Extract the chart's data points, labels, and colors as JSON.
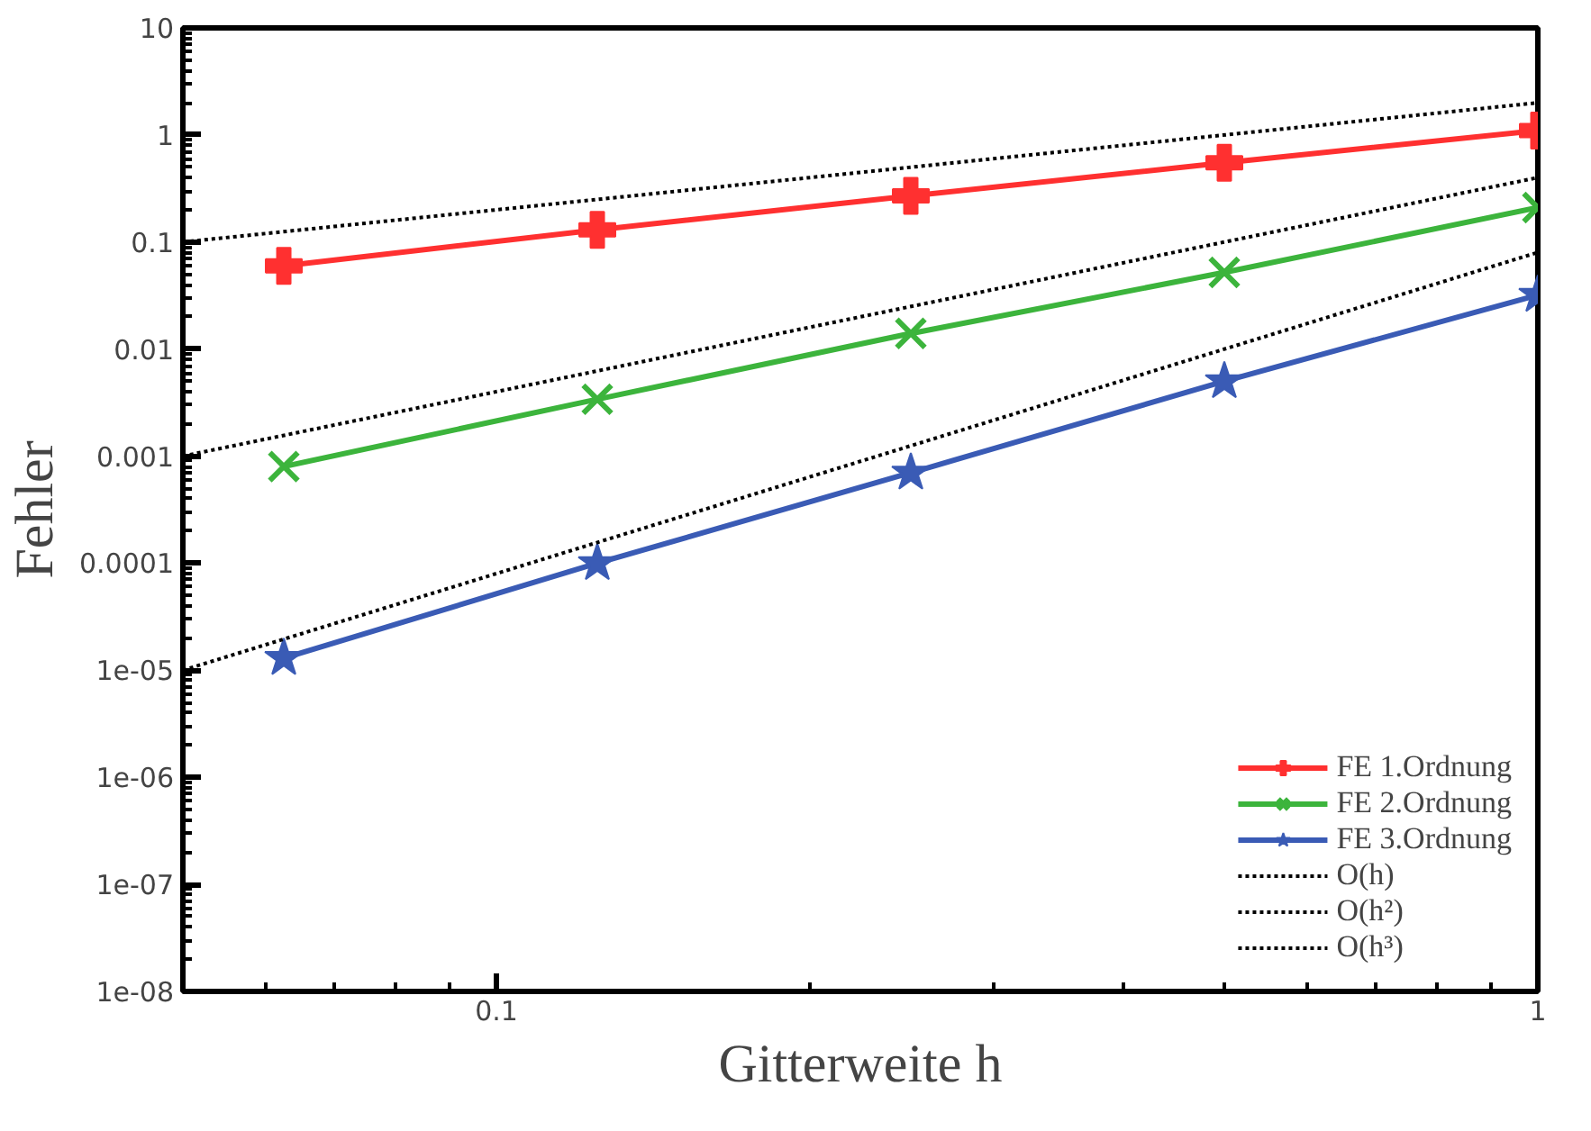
{
  "chart_data": {
    "type": "line",
    "xlabel": "Gitterweite h",
    "ylabel": "Fehler",
    "log": "xy",
    "xlim": [
      0.05,
      1
    ],
    "ylim": [
      1e-08,
      10
    ],
    "xticks": [
      0.1,
      1
    ],
    "yticks": [
      {
        "value": 10,
        "label": "10"
      },
      {
        "value": 1,
        "label": "1"
      },
      {
        "value": 0.1,
        "label": "0.1"
      },
      {
        "value": 0.01,
        "label": "0.01"
      },
      {
        "value": 0.001,
        "label": "0.001"
      },
      {
        "value": 0.0001,
        "label": "0.0001"
      },
      {
        "value": 1e-05,
        "label": "1e-05"
      },
      {
        "value": 1e-06,
        "label": "1e-06"
      },
      {
        "value": 1e-07,
        "label": "1e-07"
      },
      {
        "value": 1e-08,
        "label": "1e-08"
      }
    ],
    "grid": false,
    "legend": "bottom right",
    "line_style": "solid",
    "series": [
      {
        "name": "FE 1.Ordnung",
        "color": "#ff3030",
        "marker": "cross",
        "x": [
          0.0625,
          0.125,
          0.25,
          0.5,
          1
        ],
        "values": [
          0.06,
          0.13,
          0.27,
          0.55,
          1.1
        ]
      },
      {
        "name": "FE 2.Ordnung",
        "color": "#3cb43c",
        "marker": "x",
        "x": [
          0.0625,
          0.125,
          0.25,
          0.5,
          1
        ],
        "values": [
          0.0008,
          0.0034,
          0.014,
          0.052,
          0.21
        ]
      },
      {
        "name": "FE 3.Ordnung",
        "color": "#3a5bb5",
        "marker": "star",
        "x": [
          0.0625,
          0.125,
          0.25,
          0.5,
          1
        ],
        "values": [
          1.3e-05,
          0.0001,
          0.0007,
          0.005,
          0.032
        ]
      },
      {
        "name": "O(h)",
        "color": "#000000",
        "marker": "none",
        "line_style": "dotted",
        "x": [
          0.05,
          1
        ],
        "values": [
          0.1,
          2
        ]
      },
      {
        "name": "O(h²)",
        "color": "#000000",
        "marker": "none",
        "line_style": "dotted",
        "x": [
          0.05,
          1
        ],
        "values": [
          0.001,
          0.4
        ]
      },
      {
        "name": "O(h³)",
        "color": "#000000",
        "marker": "none",
        "line_style": "dotted",
        "x": [
          0.05,
          1
        ],
        "values": [
          1e-05,
          0.08
        ]
      }
    ]
  }
}
